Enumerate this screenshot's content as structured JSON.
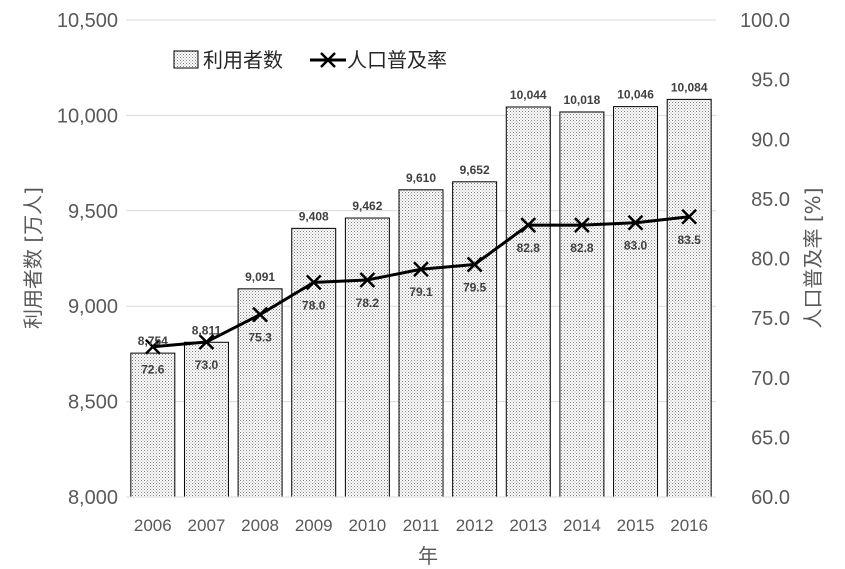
{
  "chart_data": {
    "type": "bar",
    "title": "",
    "xlabel": "年",
    "ylabel": "利用者数 [万人]",
    "y2label": "人口普及率 [%]",
    "categories": [
      "2006",
      "2007",
      "2008",
      "2009",
      "2010",
      "2011",
      "2012",
      "2013",
      "2014",
      "2015",
      "2016"
    ],
    "ylim": [
      8000,
      10500
    ],
    "y2lim": [
      60,
      100
    ],
    "yticks": [
      "8,000",
      "8,500",
      "9,000",
      "9,500",
      "10,000",
      "10,500"
    ],
    "y2ticks": [
      "60.0",
      "65.0",
      "70.0",
      "75.0",
      "80.0",
      "85.0",
      "90.0",
      "95.0",
      "100.0"
    ],
    "grid": true,
    "legend_position": "top-left",
    "series": [
      {
        "name": "利用者数",
        "kind": "bar",
        "axis": "left",
        "values": [
          8754,
          8811,
          9091,
          9408,
          9462,
          9610,
          9652,
          10044,
          10018,
          10046,
          10084
        ],
        "labels": [
          "8,754",
          "8,811",
          "9,091",
          "9,408",
          "9,462",
          "9,610",
          "9,652",
          "10,044",
          "10,018",
          "10,046",
          "10,084"
        ]
      },
      {
        "name": "人口普及率",
        "kind": "line",
        "axis": "right",
        "marker": "x",
        "values": [
          72.6,
          73.0,
          75.3,
          78.0,
          78.2,
          79.1,
          79.5,
          82.8,
          82.8,
          83.0,
          83.5
        ],
        "labels": [
          "72.6",
          "73.0",
          "75.3",
          "78.0",
          "78.2",
          "79.1",
          "79.5",
          "82.8",
          "82.8",
          "83.0",
          "83.5"
        ]
      }
    ]
  }
}
